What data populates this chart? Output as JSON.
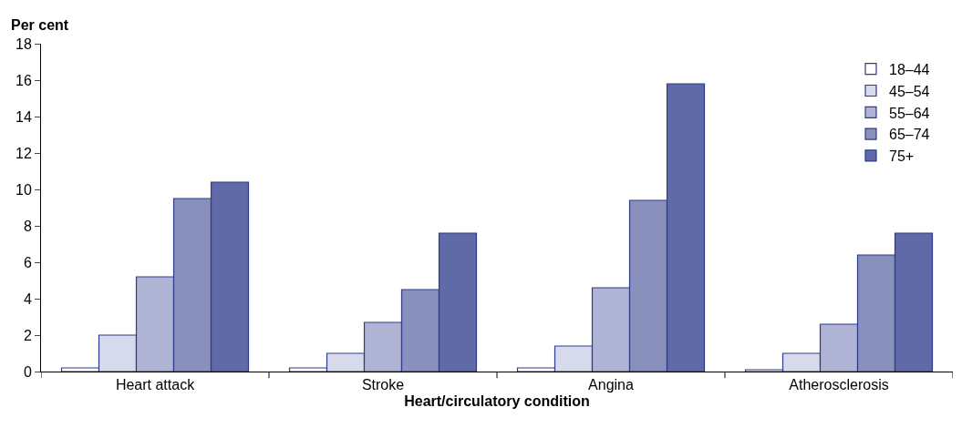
{
  "chart_data": {
    "type": "bar",
    "xlabel": "Heart/circulatory condition",
    "ylabel": "Per cent",
    "categories": [
      "Heart attack",
      "Stroke",
      "Angina",
      "Atherosclerosis"
    ],
    "series": [
      {
        "name": "18–44",
        "color": "#ffffff",
        "values": [
          0.2,
          0.2,
          0.2,
          0.1
        ]
      },
      {
        "name": "45–54",
        "color": "#d7daea",
        "values": [
          2.0,
          1.0,
          1.4,
          1.0
        ]
      },
      {
        "name": "55–64",
        "color": "#b0b4d4",
        "values": [
          5.2,
          2.7,
          4.6,
          2.6
        ]
      },
      {
        "name": "65–74",
        "color": "#8890bb",
        "values": [
          9.5,
          4.5,
          9.4,
          6.4
        ]
      },
      {
        "name": "75+",
        "color": "#5f6aa7",
        "values": [
          10.4,
          7.6,
          15.8,
          7.6
        ]
      }
    ],
    "ylim": [
      0,
      18
    ],
    "yticks": [
      0,
      2,
      4,
      6,
      8,
      10,
      12,
      14,
      16,
      18
    ],
    "legend": "top right"
  }
}
